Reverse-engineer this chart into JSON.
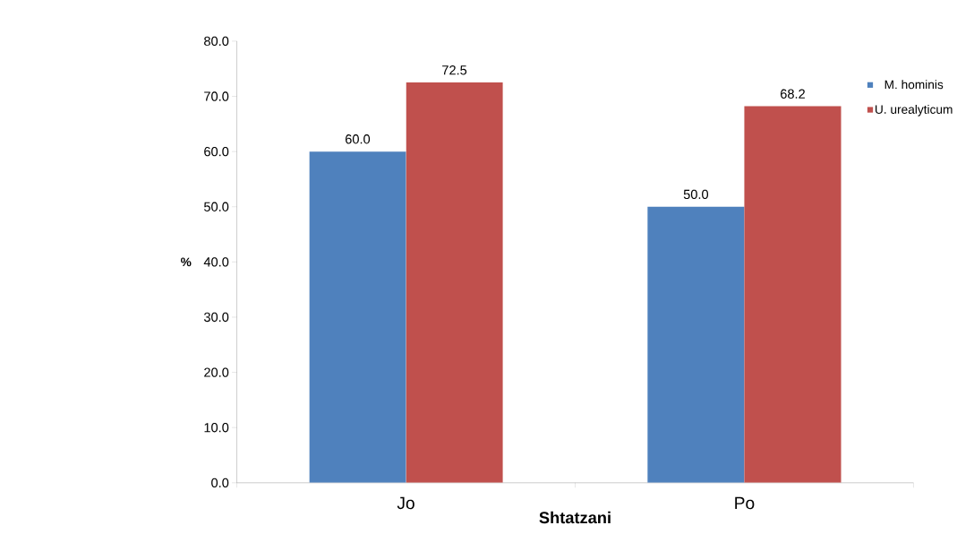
{
  "chart_data": {
    "type": "bar",
    "xlabel": "Shtatzani",
    "ylabel": "%",
    "categories": [
      "Jo",
      "Po"
    ],
    "series": [
      {
        "name": "M. hominis",
        "color": "#4f81bd",
        "values": [
          60.0,
          50.0
        ],
        "value_labels": [
          "60.0",
          "50.0"
        ]
      },
      {
        "name": "U. urealyticum",
        "color": "#c0504d",
        "values": [
          72.5,
          68.2
        ],
        "value_labels": [
          "72.5",
          "68.2"
        ]
      }
    ],
    "ylim": [
      0,
      80
    ],
    "yticks": [
      {
        "value": 0,
        "label": "0.0"
      },
      {
        "value": 10,
        "label": "10.0"
      },
      {
        "value": 20,
        "label": "20.0"
      },
      {
        "value": 30,
        "label": "30.0"
      },
      {
        "value": 40,
        "label": "40.0"
      },
      {
        "value": 50,
        "label": "50.0"
      },
      {
        "value": 60,
        "label": "60.0"
      },
      {
        "value": 70,
        "label": "70.0"
      },
      {
        "value": 80,
        "label": "80.0"
      }
    ],
    "grid": false,
    "legend": "right"
  }
}
